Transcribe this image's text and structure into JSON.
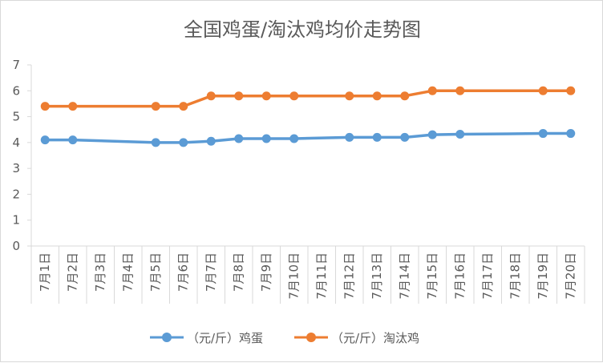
{
  "chart_data": {
    "type": "line",
    "title": "全国鸡蛋/淘汰鸡均价走势图",
    "categories": [
      "7月1日",
      "7月2日",
      "7月3日",
      "7月4日",
      "7月5日",
      "7月6日",
      "7月7日",
      "7月8日",
      "7月9日",
      "7月10日",
      "7月11日",
      "7月12日",
      "7月13日",
      "7月14日",
      "7月15日",
      "7月16日",
      "7月17日",
      "7月18日",
      "7月19日",
      "7月20日"
    ],
    "y_ticks": [
      "0",
      "1",
      "2",
      "3",
      "4",
      "5",
      "6",
      "7"
    ],
    "ylim": [
      0,
      7
    ],
    "grid": false,
    "legend_position": "bottom",
    "series": [
      {
        "name": "（元/斤）鸡蛋",
        "color": "#5b9bd5",
        "values": [
          4.1,
          4.1,
          null,
          null,
          4.0,
          4.0,
          4.05,
          4.15,
          4.15,
          4.15,
          null,
          4.2,
          4.2,
          4.2,
          4.3,
          4.32,
          null,
          null,
          4.35,
          4.35
        ]
      },
      {
        "name": "（元/斤）淘汰鸡",
        "color": "#ed7d31",
        "values": [
          5.4,
          5.4,
          null,
          null,
          5.4,
          5.4,
          5.8,
          5.8,
          5.8,
          5.8,
          null,
          5.8,
          5.8,
          5.8,
          6.0,
          6.0,
          null,
          null,
          6.0,
          6.0
        ]
      }
    ]
  }
}
